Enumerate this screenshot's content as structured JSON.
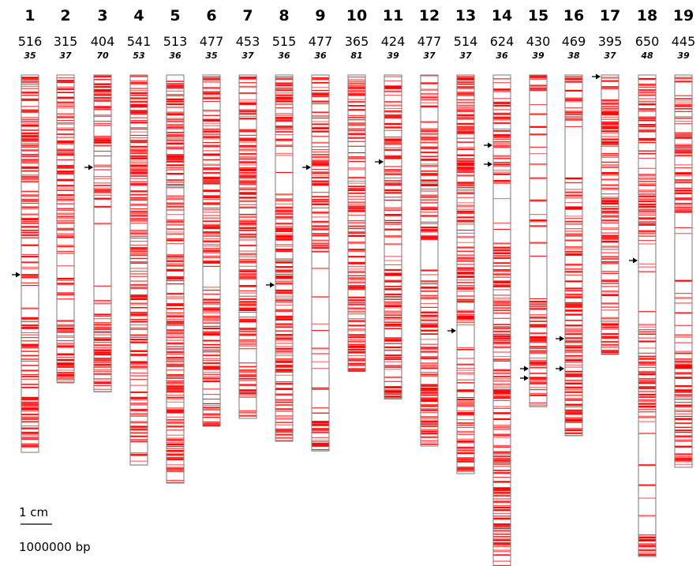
{
  "marker_color": "#ff0000",
  "arrow_color": "#000000",
  "scale": {
    "length_label": "1 cm",
    "bp_label": "1000000 bp"
  },
  "chromosomes": [
    {
      "number": "1",
      "count": "516",
      "sub": "35",
      "length": 478,
      "arrows": [
        253
      ]
    },
    {
      "number": "2",
      "count": "315",
      "sub": "37",
      "length": 389,
      "arrows": []
    },
    {
      "number": "3",
      "count": "404",
      "sub": "70",
      "length": 401,
      "arrows": [
        117
      ]
    },
    {
      "number": "4",
      "count": "541",
      "sub": "53",
      "length": 494,
      "arrows": []
    },
    {
      "number": "5",
      "count": "513",
      "sub": "36",
      "length": 517,
      "arrows": []
    },
    {
      "number": "6",
      "count": "477",
      "sub": "35",
      "length": 445,
      "arrows": []
    },
    {
      "number": "7",
      "count": "453",
      "sub": "37",
      "length": 435,
      "arrows": []
    },
    {
      "number": "8",
      "count": "515",
      "sub": "36",
      "length": 464,
      "arrows": [
        266
      ]
    },
    {
      "number": "9",
      "count": "477",
      "sub": "36",
      "length": 476,
      "arrows": [
        117
      ]
    },
    {
      "number": "10",
      "count": "365",
      "sub": "81",
      "length": 375,
      "arrows": []
    },
    {
      "number": "11",
      "count": "424",
      "sub": "39",
      "length": 410,
      "arrows": [
        110
      ]
    },
    {
      "number": "12",
      "count": "477",
      "sub": "37",
      "length": 470,
      "arrows": []
    },
    {
      "number": "13",
      "count": "514",
      "sub": "37",
      "length": 505,
      "arrows": [
        324
      ]
    },
    {
      "number": "14",
      "count": "624",
      "sub": "36",
      "length": 622,
      "arrows": [
        89,
        113
      ]
    },
    {
      "number": "15",
      "count": "430",
      "sub": "39",
      "length": 420,
      "arrows": [
        372,
        384
      ]
    },
    {
      "number": "16",
      "count": "469",
      "sub": "38",
      "length": 457,
      "arrows": [
        334,
        372
      ]
    },
    {
      "number": "17",
      "count": "395",
      "sub": "37",
      "length": 354,
      "arrows": [
        2
      ]
    },
    {
      "number": "18",
      "count": "650",
      "sub": "48",
      "length": 610,
      "arrows": [
        235
      ]
    },
    {
      "number": "19",
      "count": "445",
      "sub": "39",
      "length": 497,
      "arrows": []
    }
  ]
}
